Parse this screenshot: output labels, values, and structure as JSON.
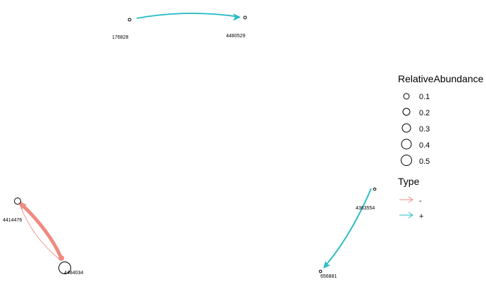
{
  "network": {
    "nodes": [
      {
        "id": "n176828",
        "label": "176828",
        "relative_abundance": 0.04
      },
      {
        "id": "n4480529",
        "label": "4480529",
        "relative_abundance": 0.04
      },
      {
        "id": "n4414476",
        "label": "4414476",
        "relative_abundance": 0.12
      },
      {
        "id": "n4484034",
        "label": "4484034",
        "relative_abundance": 0.45
      },
      {
        "id": "n4363554",
        "label": "4363554",
        "relative_abundance": 0.03
      },
      {
        "id": "n656881",
        "label": "656881",
        "relative_abundance": 0.03
      }
    ],
    "edges": [
      {
        "from": "n176828",
        "to": "n4480529",
        "type": "+",
        "weight": "thin"
      },
      {
        "from": "n4484034",
        "to": "n4414476",
        "type": "-",
        "weight": "thick"
      },
      {
        "from": "n4414476",
        "to": "n4484034",
        "type": "-",
        "weight": "thin"
      },
      {
        "from": "n4363554",
        "to": "n656881",
        "type": "+",
        "weight": "medium"
      }
    ]
  },
  "legend": {
    "size_title": "RelativeAbundance",
    "size_items": [
      {
        "label": "0.1",
        "value": 0.1
      },
      {
        "label": "0.2",
        "value": 0.2
      },
      {
        "label": "0.3",
        "value": 0.3
      },
      {
        "label": "0.4",
        "value": 0.4
      },
      {
        "label": "0.5",
        "value": 0.5
      }
    ],
    "type_title": "Type",
    "type_items": [
      {
        "label": "-",
        "color": "#F08A80"
      },
      {
        "label": "+",
        "color": "#2BBDC4"
      }
    ]
  },
  "colors": {
    "negative": "#F08A80",
    "positive": "#2BBDC4",
    "node_stroke": "#000000"
  }
}
